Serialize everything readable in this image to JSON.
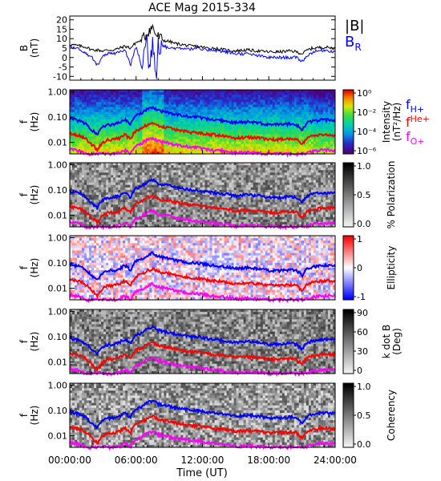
{
  "figure": {
    "title": "ACE Mag 2015-334",
    "xlabel": "Time (UT)",
    "xticks": [
      "00:00:00",
      "06:00:00",
      "12:00:00",
      "18:00:00",
      "24:00:00"
    ]
  },
  "colors": {
    "frame": "#000000",
    "B_total": "#000000",
    "B_R": "#0000ff",
    "f_H": "#0000ff",
    "f_He": "#ff0000",
    "f_O": "#ff00ff"
  },
  "legend_top": {
    "btotal": "|B|",
    "br": "B",
    "br_sub": "R"
  },
  "legend_freq": {
    "h": "f",
    "h_sub": "H+",
    "he": "f",
    "he_sup": "He+",
    "o": "f",
    "o_sub": "O+"
  },
  "chart_data": [
    {
      "panel": "magnetic-field",
      "type": "line",
      "ylabel": [
        "B",
        "(nT)"
      ],
      "yticks": [
        "20",
        "15",
        "10",
        "5",
        "0",
        "-5",
        "-10"
      ],
      "ylim": [
        -12,
        22
      ],
      "xlim": [
        0,
        24
      ],
      "series": [
        {
          "name": "|B|",
          "x": [
            0,
            0.5,
            1,
            1.5,
            2,
            2.5,
            3,
            3.5,
            4,
            4.5,
            5,
            5.5,
            6,
            6.5,
            7,
            7.2,
            7.5,
            7.8,
            8,
            8.5,
            9,
            9.5,
            10,
            10.5,
            11,
            11.5,
            12,
            12.5,
            13,
            13.5,
            14,
            15,
            16,
            17,
            18,
            19,
            20,
            20.5,
            21,
            21.5,
            22,
            23,
            24
          ],
          "y": [
            7,
            6.5,
            6,
            5.5,
            4,
            4,
            3.5,
            4,
            4,
            5,
            6,
            5,
            8,
            9,
            13,
            15,
            16,
            12,
            11,
            9,
            8.5,
            7.5,
            7,
            6.5,
            6,
            6,
            5.5,
            5,
            5,
            4.5,
            4,
            3.5,
            4,
            3.5,
            3,
            3,
            3.5,
            3,
            2,
            4,
            5,
            5.5,
            5
          ]
        },
        {
          "name": "B_R",
          "x": [
            0,
            0.5,
            1,
            1.5,
            2,
            2.5,
            3,
            3.5,
            4,
            4.5,
            5,
            5.5,
            6,
            6.5,
            7,
            7.2,
            7.5,
            7.8,
            8,
            8.5,
            9,
            9.5,
            10,
            10.5,
            11,
            11.5,
            12,
            12.5,
            13,
            13.5,
            14,
            15,
            16,
            17,
            18,
            19,
            20,
            20.5,
            21,
            21.5,
            22,
            23,
            24
          ],
          "y": [
            6,
            5,
            4,
            2,
            0,
            -4,
            1,
            2,
            2,
            3,
            4,
            -4,
            6,
            -5,
            10,
            -8,
            12,
            -10,
            9,
            6,
            5,
            5,
            5,
            5,
            4.5,
            5,
            4,
            4,
            4,
            3.5,
            3,
            2,
            2,
            1,
            0,
            0,
            0,
            0,
            -2,
            1,
            3,
            4,
            3
          ]
        }
      ]
    },
    {
      "panel": "intensity",
      "type": "heatmap",
      "ylabel": [
        "f",
        "(Hz)"
      ],
      "yticks": [
        "1.00",
        "0.10",
        "0.01"
      ],
      "colorbar": {
        "label": "Intensity",
        "unit": "(nT²/Hz)",
        "ticks": [
          "10⁰",
          "10⁻²",
          "10⁻⁴",
          "10⁻⁶"
        ]
      }
    },
    {
      "panel": "polarization",
      "type": "heatmap",
      "ylabel": [
        "f",
        "(Hz)"
      ],
      "yticks": [
        "1.00",
        "0.10",
        "0.01"
      ],
      "colorbar": {
        "label": "% Polarization",
        "ticks": [
          "1.0",
          "0.5",
          "0.0"
        ]
      }
    },
    {
      "panel": "ellipticity",
      "type": "heatmap",
      "ylabel": [
        "f",
        "(Hz)"
      ],
      "yticks": [
        "1.00",
        "0.10",
        "0.01"
      ],
      "colorbar": {
        "label": "Ellipticity",
        "ticks": [
          "1",
          "0",
          "-1"
        ]
      }
    },
    {
      "panel": "k-dot-b",
      "type": "heatmap",
      "ylabel": [
        "f",
        "(Hz)"
      ],
      "yticks": [
        "1.00",
        "0.10",
        "0.01"
      ],
      "colorbar": {
        "label": "k dot B",
        "unit": "(Deg)",
        "ticks": [
          "90",
          "60",
          "30",
          "0"
        ]
      }
    },
    {
      "panel": "coherency",
      "type": "heatmap",
      "ylabel": [
        "f",
        "(Hz)"
      ],
      "yticks": [
        "1.00",
        "0.10",
        "0.01"
      ],
      "colorbar": {
        "label": "Coherency",
        "ticks": [
          "1.0",
          "0.5",
          "0.0"
        ]
      }
    }
  ],
  "gyro_lines": {
    "x": [
      0,
      0.5,
      1,
      1.5,
      2,
      2.5,
      3,
      3.5,
      4,
      4.5,
      5,
      5.5,
      6,
      6.5,
      7,
      7.5,
      8,
      8.5,
      9,
      9.5,
      10,
      10.5,
      11,
      11.5,
      12,
      12.5,
      13,
      13.5,
      14,
      15,
      16,
      17,
      18,
      19,
      20,
      20.5,
      21,
      21.5,
      22,
      23,
      24
    ],
    "f_H": [
      0.09,
      0.08,
      0.07,
      0.05,
      0.03,
      0.02,
      0.04,
      0.05,
      0.05,
      0.06,
      0.08,
      0.05,
      0.12,
      0.14,
      0.2,
      0.25,
      0.18,
      0.16,
      0.15,
      0.13,
      0.12,
      0.11,
      0.1,
      0.1,
      0.09,
      0.085,
      0.08,
      0.075,
      0.07,
      0.06,
      0.065,
      0.06,
      0.05,
      0.05,
      0.055,
      0.05,
      0.03,
      0.06,
      0.07,
      0.08,
      0.075
    ],
    "f_He": [
      0.022,
      0.02,
      0.018,
      0.013,
      0.008,
      0.005,
      0.01,
      0.013,
      0.013,
      0.015,
      0.02,
      0.013,
      0.03,
      0.035,
      0.05,
      0.06,
      0.045,
      0.04,
      0.038,
      0.033,
      0.03,
      0.028,
      0.025,
      0.025,
      0.023,
      0.021,
      0.02,
      0.019,
      0.018,
      0.015,
      0.016,
      0.015,
      0.013,
      0.013,
      0.014,
      0.013,
      0.008,
      0.015,
      0.018,
      0.02,
      0.019
    ],
    "f_O": [
      0.0056,
      0.005,
      0.0045,
      0.0033,
      0.0035,
      0.0035,
      0.0035,
      0.0035,
      0.0035,
      0.0038,
      0.005,
      0.0035,
      0.0075,
      0.0088,
      0.0125,
      0.015,
      0.011,
      0.01,
      0.0095,
      0.008,
      0.0075,
      0.007,
      0.0063,
      0.0063,
      0.0056,
      0.0053,
      0.005,
      0.0048,
      0.0045,
      0.0038,
      0.004,
      0.0038,
      0.0035,
      0.0035,
      0.0035,
      0.0035,
      0.0035,
      0.0038,
      0.0045,
      0.005,
      0.0048
    ]
  }
}
